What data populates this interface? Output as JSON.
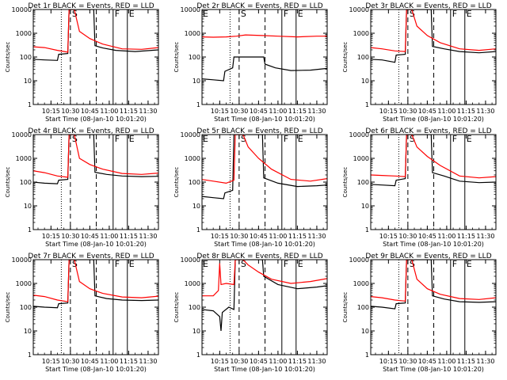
{
  "common": {
    "ylabel": "Counts/sec",
    "xlabel": "Start Time (08-Jan-10 10:01:20)",
    "x_ticks": [
      "10:15",
      "10:30",
      "10:45",
      "11:00",
      "11:15",
      "11:30"
    ],
    "y_ticks": [
      "1",
      "10",
      "100",
      "1000",
      "10000"
    ],
    "y_scale": "log",
    "ylim": [
      1,
      10000
    ],
    "xlim": [
      "10:01:20",
      "11:38"
    ],
    "colors": {
      "events": "#000000",
      "lld": "#ff0000"
    },
    "markers": [
      {
        "time": "10:23",
        "style": "dotted",
        "label": ""
      },
      {
        "time": "10:30",
        "style": "dashed",
        "label": "S"
      },
      {
        "time": "10:50",
        "style": "dashed",
        "label": ""
      },
      {
        "time": "11:03",
        "style": "solid",
        "label": "F"
      },
      {
        "time": "11:14",
        "style": "solid",
        "label": "E"
      }
    ]
  },
  "chart_data": [
    {
      "type": "line",
      "title": "Det 1r BLACK = Events, RED = LLD",
      "start_marker": "",
      "series": [
        {
          "color": "#000000",
          "points": [
            [
              "10:01",
              80
            ],
            [
              "10:10",
              75
            ],
            [
              "10:20",
              72
            ],
            [
              "10:21",
              130
            ],
            [
              "10:28",
              140
            ],
            [
              "10:29",
              10000
            ],
            [
              "10:48",
              10000
            ],
            [
              "10:49",
              300
            ],
            [
              "10:55",
              240
            ],
            [
              "11:05",
              190
            ],
            [
              "11:20",
              170
            ],
            [
              "11:38",
              200
            ]
          ]
        },
        {
          "color": "#ff0000",
          "points": [
            [
              "10:01",
              270
            ],
            [
              "10:10",
              250
            ],
            [
              "10:20",
              190
            ],
            [
              "10:28",
              160
            ],
            [
              "10:29",
              10000
            ],
            [
              "10:33",
              10000
            ],
            [
              "10:37",
              1200
            ],
            [
              "10:45",
              600
            ],
            [
              "10:55",
              350
            ],
            [
              "11:10",
              220
            ],
            [
              "11:25",
              210
            ],
            [
              "11:38",
              250
            ]
          ]
        }
      ]
    },
    {
      "type": "line",
      "title": "Det 2r BLACK = Events, RED = LLD",
      "start_marker": "E",
      "series": [
        {
          "color": "#000000",
          "points": [
            [
              "10:01",
              12
            ],
            [
              "10:10",
              11
            ],
            [
              "10:18",
              10
            ],
            [
              "10:19",
              25
            ],
            [
              "10:25",
              35
            ],
            [
              "10:26",
              100
            ],
            [
              "10:49",
              100
            ],
            [
              "10:50",
              50
            ],
            [
              "10:58",
              35
            ],
            [
              "11:10",
              27
            ],
            [
              "11:25",
              28
            ],
            [
              "11:38",
              33
            ]
          ]
        },
        {
          "color": "#ff0000",
          "points": [
            [
              "10:01",
              700
            ],
            [
              "10:10",
              680
            ],
            [
              "10:20",
              700
            ],
            [
              "10:28",
              750
            ],
            [
              "10:35",
              850
            ],
            [
              "10:48",
              800
            ],
            [
              "11:00",
              750
            ],
            [
              "11:15",
              700
            ],
            [
              "11:30",
              750
            ],
            [
              "11:38",
              750
            ]
          ]
        }
      ]
    },
    {
      "type": "line",
      "title": "Det 3r BLACK = Events, RED = LLD",
      "start_marker": "",
      "series": [
        {
          "color": "#000000",
          "points": [
            [
              "10:01",
              80
            ],
            [
              "10:10",
              75
            ],
            [
              "10:20",
              60
            ],
            [
              "10:21",
              120
            ],
            [
              "10:28",
              130
            ],
            [
              "10:29",
              10000
            ],
            [
              "10:48",
              10000
            ],
            [
              "10:49",
              280
            ],
            [
              "10:58",
              220
            ],
            [
              "11:10",
              170
            ],
            [
              "11:25",
              150
            ],
            [
              "11:38",
              170
            ]
          ]
        },
        {
          "color": "#ff0000",
          "points": [
            [
              "10:01",
              250
            ],
            [
              "10:10",
              220
            ],
            [
              "10:20",
              180
            ],
            [
              "10:28",
              170
            ],
            [
              "10:29",
              10000
            ],
            [
              "10:33",
              10000
            ],
            [
              "10:37",
              2000
            ],
            [
              "10:45",
              800
            ],
            [
              "10:55",
              400
            ],
            [
              "11:10",
              220
            ],
            [
              "11:25",
              190
            ],
            [
              "11:38",
              220
            ]
          ]
        }
      ]
    },
    {
      "type": "line",
      "title": "Det 4r BLACK = Events, RED = LLD",
      "start_marker": "",
      "series": [
        {
          "color": "#000000",
          "points": [
            [
              "10:01",
              100
            ],
            [
              "10:10",
              90
            ],
            [
              "10:20",
              85
            ],
            [
              "10:21",
              120
            ],
            [
              "10:28",
              130
            ],
            [
              "10:29",
              10000
            ],
            [
              "10:48",
              10000
            ],
            [
              "10:49",
              260
            ],
            [
              "10:58",
              210
            ],
            [
              "11:10",
              180
            ],
            [
              "11:25",
              170
            ],
            [
              "11:38",
              175
            ]
          ]
        },
        {
          "color": "#ff0000",
          "points": [
            [
              "10:01",
              300
            ],
            [
              "10:10",
              250
            ],
            [
              "10:20",
              180
            ],
            [
              "10:28",
              160
            ],
            [
              "10:29",
              10000
            ],
            [
              "10:33",
              10000
            ],
            [
              "10:37",
              1000
            ],
            [
              "10:45",
              550
            ],
            [
              "10:55",
              350
            ],
            [
              "11:10",
              230
            ],
            [
              "11:25",
              210
            ],
            [
              "11:38",
              240
            ]
          ]
        }
      ]
    },
    {
      "type": "line",
      "title": "Det 5r BLACK = Events, RED = LLD",
      "start_marker": "E",
      "series": [
        {
          "color": "#000000",
          "points": [
            [
              "10:01",
              25
            ],
            [
              "10:10",
              22
            ],
            [
              "10:18",
              20
            ],
            [
              "10:19",
              35
            ],
            [
              "10:25",
              45
            ],
            [
              "10:26",
              10000
            ],
            [
              "10:48",
              10000
            ],
            [
              "10:49",
              150
            ],
            [
              "11:00",
              90
            ],
            [
              "11:15",
              65
            ],
            [
              "11:30",
              70
            ],
            [
              "11:38",
              75
            ]
          ]
        },
        {
          "color": "#ff0000",
          "points": [
            [
              "10:01",
              130
            ],
            [
              "10:10",
              110
            ],
            [
              "10:20",
              90
            ],
            [
              "10:26",
              120
            ],
            [
              "10:27",
              10000
            ],
            [
              "10:33",
              10000
            ],
            [
              "10:37",
              3000
            ],
            [
              "10:45",
              1000
            ],
            [
              "10:55",
              350
            ],
            [
              "11:10",
              130
            ],
            [
              "11:25",
              110
            ],
            [
              "11:38",
              140
            ]
          ]
        }
      ]
    },
    {
      "type": "line",
      "title": "Det 6r BLACK = Events, RED = LLD",
      "start_marker": "",
      "series": [
        {
          "color": "#000000",
          "points": [
            [
              "10:01",
              80
            ],
            [
              "10:10",
              75
            ],
            [
              "10:20",
              70
            ],
            [
              "10:21",
              120
            ],
            [
              "10:28",
              140
            ],
            [
              "10:29",
              10000
            ],
            [
              "10:48",
              10000
            ],
            [
              "10:49",
              250
            ],
            [
              "10:58",
              180
            ],
            [
              "11:10",
              110
            ],
            [
              "11:25",
              95
            ],
            [
              "11:38",
              100
            ]
          ]
        },
        {
          "color": "#ff0000",
          "points": [
            [
              "10:01",
              200
            ],
            [
              "10:10",
              190
            ],
            [
              "10:20",
              180
            ],
            [
              "10:28",
              170
            ],
            [
              "10:29",
              10000
            ],
            [
              "10:33",
              10000
            ],
            [
              "10:37",
              3000
            ],
            [
              "10:45",
              1200
            ],
            [
              "10:55",
              500
            ],
            [
              "11:10",
              180
            ],
            [
              "11:25",
              150
            ],
            [
              "11:38",
              170
            ]
          ]
        }
      ]
    },
    {
      "type": "line",
      "title": "Det 7r BLACK = Events, RED = LLD",
      "start_marker": "",
      "series": [
        {
          "color": "#000000",
          "points": [
            [
              "10:01",
              110
            ],
            [
              "10:10",
              100
            ],
            [
              "10:20",
              95
            ],
            [
              "10:21",
              140
            ],
            [
              "10:28",
              150
            ],
            [
              "10:29",
              10000
            ],
            [
              "10:48",
              10000
            ],
            [
              "10:49",
              300
            ],
            [
              "10:58",
              230
            ],
            [
              "11:10",
              200
            ],
            [
              "11:25",
              190
            ],
            [
              "11:38",
              200
            ]
          ]
        },
        {
          "color": "#ff0000",
          "points": [
            [
              "10:01",
              320
            ],
            [
              "10:10",
              280
            ],
            [
              "10:20",
              200
            ],
            [
              "10:28",
              170
            ],
            [
              "10:29",
              10000
            ],
            [
              "10:33",
              10000
            ],
            [
              "10:37",
              1200
            ],
            [
              "10:45",
              600
            ],
            [
              "10:55",
              380
            ],
            [
              "11:10",
              270
            ],
            [
              "11:25",
              250
            ],
            [
              "11:38",
              290
            ]
          ]
        }
      ]
    },
    {
      "type": "line",
      "title": "Det 8r BLACK = Events, RED = LLD",
      "start_marker": "E",
      "series": [
        {
          "color": "#000000",
          "points": [
            [
              "10:01",
              80
            ],
            [
              "10:10",
              70
            ],
            [
              "10:15",
              40
            ],
            [
              "10:16",
              10
            ],
            [
              "10:17",
              60
            ],
            [
              "10:22",
              100
            ],
            [
              "10:26",
              80
            ],
            [
              "10:27",
              10000
            ],
            [
              "10:48",
              10000
            ],
            [
              "10:49",
              2000
            ],
            [
              "11:00",
              900
            ],
            [
              "11:15",
              600
            ],
            [
              "11:30",
              700
            ],
            [
              "11:38",
              800
            ]
          ]
        },
        {
          "color": "#ff0000",
          "points": [
            [
              "10:01",
              300
            ],
            [
              "10:10",
              300
            ],
            [
              "10:14",
              500
            ],
            [
              "10:15",
              7000
            ],
            [
              "10:16",
              900
            ],
            [
              "10:20",
              1000
            ],
            [
              "10:26",
              900
            ],
            [
              "10:27",
              10000
            ],
            [
              "10:33",
              10000
            ],
            [
              "10:37",
              6000
            ],
            [
              "10:45",
              3000
            ],
            [
              "10:55",
              1500
            ],
            [
              "11:10",
              1000
            ],
            [
              "11:25",
              1200
            ],
            [
              "11:38",
              1600
            ]
          ]
        }
      ]
    },
    {
      "type": "line",
      "title": "Det 9r BLACK = Events, RED = LLD",
      "start_marker": "",
      "series": [
        {
          "color": "#000000",
          "points": [
            [
              "10:01",
              110
            ],
            [
              "10:10",
              100
            ],
            [
              "10:20",
              85
            ],
            [
              "10:21",
              140
            ],
            [
              "10:28",
              150
            ],
            [
              "10:29",
              10000
            ],
            [
              "10:48",
              10000
            ],
            [
              "10:49",
              300
            ],
            [
              "10:58",
              220
            ],
            [
              "11:10",
              170
            ],
            [
              "11:25",
              160
            ],
            [
              "11:38",
              170
            ]
          ]
        },
        {
          "color": "#ff0000",
          "points": [
            [
              "10:01",
              280
            ],
            [
              "10:10",
              250
            ],
            [
              "10:20",
              200
            ],
            [
              "10:28",
              180
            ],
            [
              "10:29",
              10000
            ],
            [
              "10:33",
              10000
            ],
            [
              "10:37",
              1500
            ],
            [
              "10:45",
              600
            ],
            [
              "10:55",
              350
            ],
            [
              "11:10",
              230
            ],
            [
              "11:25",
              210
            ],
            [
              "11:38",
              250
            ]
          ]
        }
      ]
    }
  ]
}
